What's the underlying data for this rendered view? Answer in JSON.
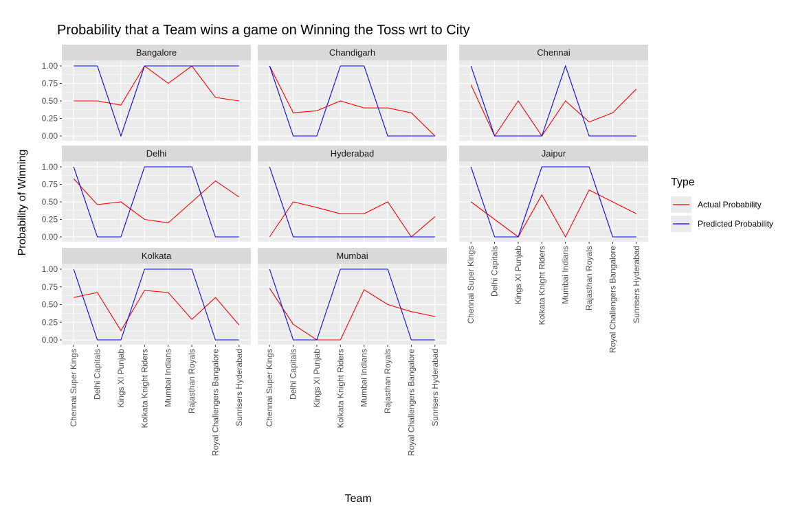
{
  "chart_data": {
    "type": "line",
    "title": "Probability that a Team wins a game on Winning the Toss wrt to City",
    "xlabel": "Team",
    "ylabel": "Probability of Winning",
    "ylim": [
      0,
      1
    ],
    "y_ticks": [
      "0.00",
      "0.25",
      "0.50",
      "0.75",
      "1.00"
    ],
    "y_tick_values": [
      0,
      0.25,
      0.5,
      0.75,
      1.0
    ],
    "categories": [
      "Chennai Super Kings",
      "Delhi Capitals",
      "Kings XI Punjab",
      "Kolkata Knight Riders",
      "Mumbai Indians",
      "Rajasthan Royals",
      "Royal Challengers Bangalore",
      "Sunrisers Hyderabad"
    ],
    "legend": {
      "title": "Type",
      "position": "right",
      "entries": [
        {
          "name": "Actual Probability",
          "color": "#ff0000"
        },
        {
          "name": "Predicted Probability",
          "color": "#0000ff"
        }
      ]
    },
    "colors": {
      "panel_bg": "#ebebeb",
      "strip_bg": "#d9d9d9",
      "grid": "#ffffff",
      "axis_text": "#4d4d4d",
      "actual": "#ff0000",
      "predicted": "#0000ff"
    },
    "facets": [
      {
        "city": "Bangalore",
        "actual": [
          0.5,
          0.5,
          0.44,
          1.0,
          0.75,
          1.0,
          0.55,
          0.5
        ],
        "predicted": [
          1,
          1,
          0,
          1,
          1,
          1,
          1,
          1
        ]
      },
      {
        "city": "Chandigarh",
        "actual": [
          1.0,
          0.33,
          0.36,
          0.5,
          0.4,
          0.4,
          0.33,
          0.0
        ],
        "predicted": [
          1,
          0,
          0,
          1,
          1,
          0,
          0,
          0
        ]
      },
      {
        "city": "Chennai",
        "actual": [
          0.73,
          0.0,
          0.5,
          0.0,
          0.5,
          0.2,
          0.33,
          0.67
        ],
        "predicted": [
          1,
          0,
          0,
          0,
          1,
          0,
          0,
          0
        ]
      },
      {
        "city": "Delhi",
        "actual": [
          0.83,
          0.46,
          0.5,
          0.25,
          0.2,
          0.5,
          0.8,
          0.57
        ],
        "predicted": [
          1,
          0,
          0,
          1,
          1,
          1,
          0,
          0
        ]
      },
      {
        "city": "Hyderabad",
        "actual": [
          0.0,
          0.5,
          0.42,
          0.33,
          0.33,
          0.5,
          0.0,
          0.29
        ],
        "predicted": [
          1,
          0,
          0,
          0,
          0,
          0,
          0,
          0
        ]
      },
      {
        "city": "Jaipur",
        "actual": [
          0.5,
          0.25,
          0.0,
          0.6,
          0.0,
          0.67,
          0.5,
          0.33
        ],
        "predicted": [
          1,
          0,
          0,
          1,
          1,
          1,
          0,
          0
        ]
      },
      {
        "city": "Kolkata",
        "actual": [
          0.6,
          0.67,
          0.13,
          0.7,
          0.67,
          0.29,
          0.6,
          0.21
        ],
        "predicted": [
          1,
          0,
          0,
          1,
          1,
          1,
          0,
          0
        ]
      },
      {
        "city": "Mumbai",
        "actual": [
          0.73,
          0.22,
          0.0,
          0.0,
          0.71,
          0.5,
          0.4,
          0.33
        ],
        "predicted": [
          1,
          0,
          0,
          1,
          1,
          1,
          0,
          0
        ]
      }
    ]
  }
}
